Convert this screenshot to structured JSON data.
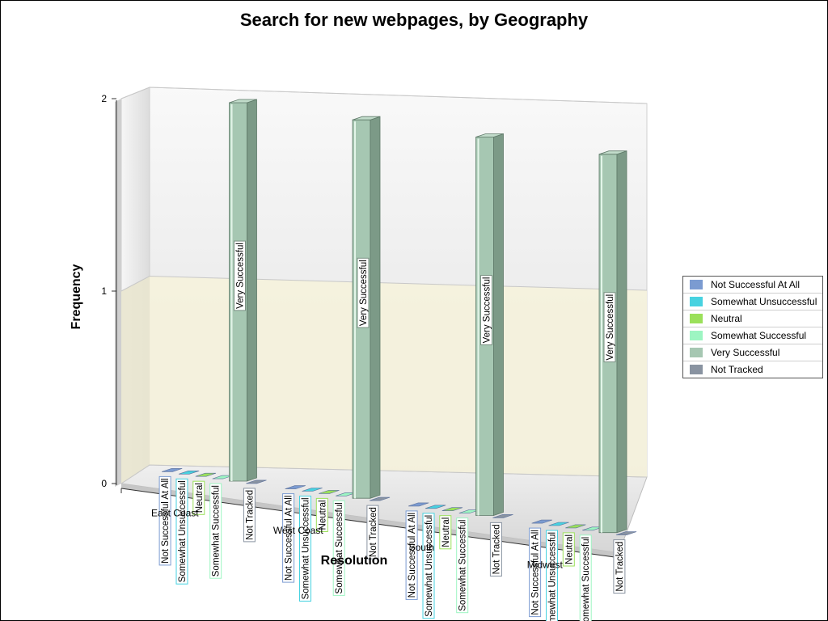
{
  "chart_data": {
    "type": "bar",
    "title": "Search for new webpages, by Geography",
    "xlabel": "Resolution",
    "ylabel": "Frequency",
    "ylim": [
      0,
      2
    ],
    "yticks": [
      "0",
      "1",
      "2"
    ],
    "categories": [
      "East Coast",
      "West Coast",
      "South",
      "Midwest"
    ],
    "series": [
      {
        "name": "Not Successful At All",
        "color": "#7b9bd1",
        "values": [
          0,
          0,
          0,
          0
        ]
      },
      {
        "name": "Somewhat Unsuccessful",
        "color": "#47d2e0",
        "values": [
          0,
          0,
          0,
          0
        ]
      },
      {
        "name": "Neutral",
        "color": "#9be05a",
        "values": [
          0,
          0,
          0,
          0
        ]
      },
      {
        "name": "Somewhat Successful",
        "color": "#9df5c2",
        "values": [
          0,
          0,
          0,
          0
        ]
      },
      {
        "name": "Very Successful",
        "color": "#a6c7b2",
        "values": [
          2,
          2,
          2,
          2
        ]
      },
      {
        "name": "Not Tracked",
        "color": "#8993a1",
        "values": [
          0,
          0,
          0,
          0
        ]
      }
    ],
    "grid": true,
    "legend_position": "right",
    "view": "3d"
  }
}
